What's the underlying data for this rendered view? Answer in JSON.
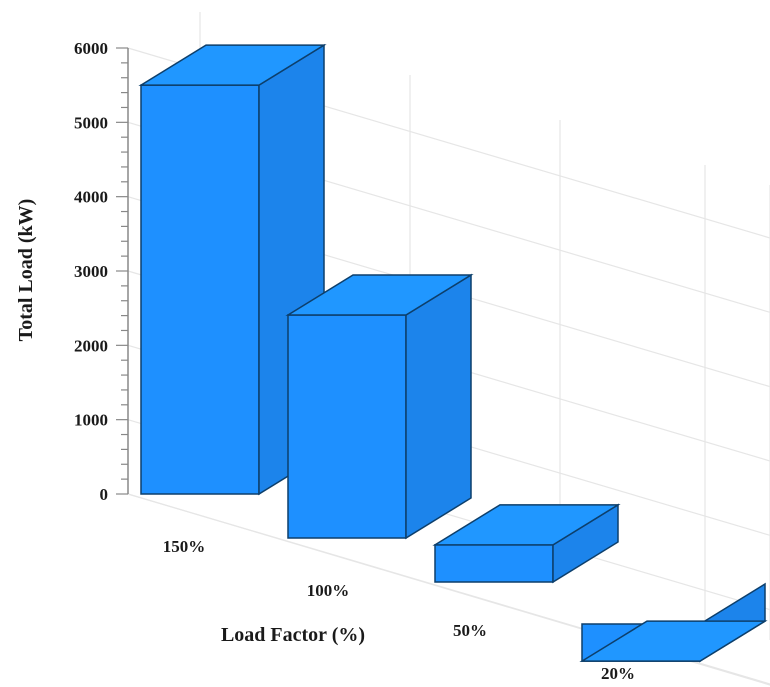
{
  "chart_data": {
    "type": "bar",
    "title": "",
    "xlabel": "Load Factor (%)",
    "ylabel": "Total Load (kW)",
    "categories": [
      "150%",
      "100%",
      "50%",
      "20%"
    ],
    "values": [
      5500,
      3000,
      500,
      -500
    ],
    "ylim": [
      0,
      6000
    ],
    "yticks": [
      "0",
      "1000",
      "2000",
      "3000",
      "4000",
      "5000",
      "6000"
    ],
    "grid": true,
    "legend": "none",
    "bar_color": "#1e90ff",
    "projection": "3d"
  }
}
